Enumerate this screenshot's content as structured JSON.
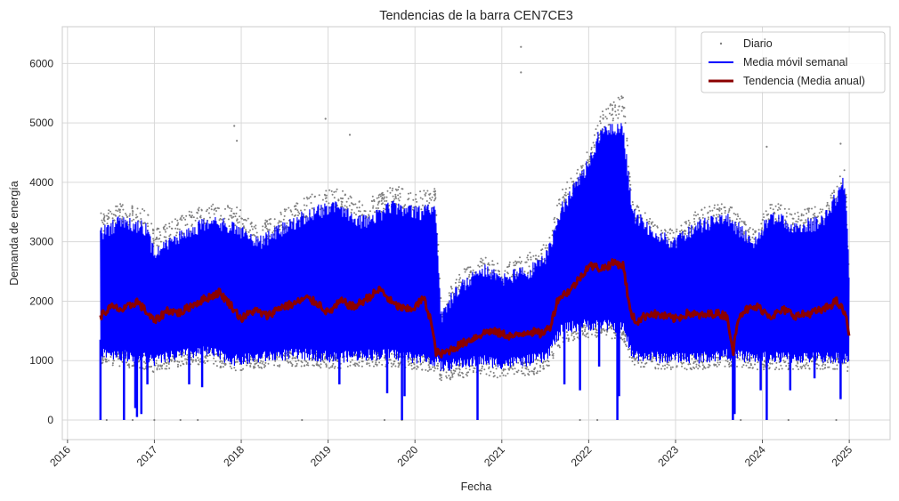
{
  "chart_data": {
    "type": "line",
    "title": "Tendencias de la barra CEN7CE3",
    "xlabel": "Fecha",
    "ylabel": "Demanda de energía",
    "xlim": [
      2015.94,
      2025.47
    ],
    "ylim": [
      -330,
      6620
    ],
    "x_ticks": [
      2016,
      2017,
      2018,
      2019,
      2020,
      2021,
      2022,
      2023,
      2024,
      2025
    ],
    "x_tick_labels": [
      "2016",
      "2017",
      "2018",
      "2019",
      "2020",
      "2021",
      "2022",
      "2023",
      "2024",
      "2025"
    ],
    "y_ticks": [
      0,
      1000,
      2000,
      3000,
      4000,
      5000,
      6000
    ],
    "y_tick_labels": [
      "0",
      "1000",
      "2000",
      "3000",
      "4000",
      "5000",
      "6000"
    ],
    "grid": true,
    "legend_position": "top-right",
    "series": [
      {
        "name": "Diario",
        "style": "scatter",
        "color": "#808080",
        "envelope_x": [
          2016.38,
          2016.6,
          2016.9,
          2017.0,
          2017.3,
          2017.6,
          2017.95,
          2018.2,
          2018.5,
          2018.8,
          2019.1,
          2019.4,
          2019.75,
          2020.0,
          2020.24,
          2020.3,
          2020.5,
          2020.8,
          2021.0,
          2021.3,
          2021.5,
          2021.7,
          2021.95,
          2022.15,
          2022.4,
          2022.5,
          2022.8,
          2023.0,
          2023.3,
          2023.6,
          2023.9,
          2024.1,
          2024.4,
          2024.7,
          2024.95,
          2025.0
        ],
        "envelope_high": [
          3500,
          3650,
          3600,
          3200,
          3450,
          3650,
          3600,
          3300,
          3550,
          3800,
          3900,
          3700,
          3950,
          3850,
          3900,
          2000,
          2500,
          2750,
          2600,
          2800,
          3000,
          3900,
          4400,
          5200,
          5500,
          3700,
          3300,
          3200,
          3600,
          3650,
          3200,
          3700,
          3500,
          3650,
          4300,
          2700
        ],
        "envelope_low": [
          950,
          900,
          850,
          800,
          900,
          950,
          800,
          850,
          900,
          900,
          850,
          900,
          900,
          850,
          800,
          650,
          700,
          750,
          700,
          750,
          800,
          1300,
          1350,
          1400,
          1300,
          900,
          850,
          850,
          850,
          900,
          850,
          850,
          850,
          850,
          850,
          800
        ],
        "outliers": [
          {
            "x": 2016.45,
            "y": 0
          },
          {
            "x": 2016.75,
            "y": 0
          },
          {
            "x": 2017.0,
            "y": 0
          },
          {
            "x": 2017.3,
            "y": 0
          },
          {
            "x": 2017.5,
            "y": 0
          },
          {
            "x": 2017.92,
            "y": 4950
          },
          {
            "x": 2017.95,
            "y": 4700
          },
          {
            "x": 2018.7,
            "y": 0
          },
          {
            "x": 2018.97,
            "y": 5070
          },
          {
            "x": 2019.25,
            "y": 4800
          },
          {
            "x": 2019.65,
            "y": 0
          },
          {
            "x": 2019.85,
            "y": 0
          },
          {
            "x": 2021.22,
            "y": 6280
          },
          {
            "x": 2021.22,
            "y": 5850
          },
          {
            "x": 2021.9,
            "y": 0
          },
          {
            "x": 2022.1,
            "y": 0
          },
          {
            "x": 2023.75,
            "y": 0
          },
          {
            "x": 2024.05,
            "y": 4600
          },
          {
            "x": 2024.3,
            "y": 0
          },
          {
            "x": 2024.85,
            "y": 0
          },
          {
            "x": 2024.9,
            "y": 4650
          }
        ]
      },
      {
        "name": "Media móvil semanal",
        "style": "line",
        "color": "#0000ff",
        "band_x": [
          2016.38,
          2016.6,
          2016.9,
          2017.0,
          2017.3,
          2017.6,
          2017.95,
          2018.2,
          2018.5,
          2018.8,
          2019.1,
          2019.4,
          2019.75,
          2020.0,
          2020.24,
          2020.3,
          2020.5,
          2020.8,
          2021.0,
          2021.3,
          2021.5,
          2021.7,
          2021.95,
          2022.15,
          2022.4,
          2022.5,
          2022.8,
          2023.0,
          2023.3,
          2023.6,
          2023.9,
          2024.1,
          2024.4,
          2024.7,
          2024.95,
          2025.0
        ],
        "band_high": [
          3250,
          3450,
          3350,
          2900,
          3200,
          3450,
          3350,
          3100,
          3350,
          3600,
          3700,
          3450,
          3700,
          3600,
          3650,
          1850,
          2350,
          2650,
          2500,
          2600,
          2800,
          3700,
          4300,
          5000,
          5000,
          3600,
          3200,
          3100,
          3400,
          3500,
          3100,
          3550,
          3350,
          3450,
          4150,
          2550
        ],
        "band_low": [
          1050,
          1000,
          950,
          900,
          1000,
          1050,
          900,
          950,
          1000,
          1000,
          950,
          1000,
          1000,
          950,
          900,
          800,
          850,
          900,
          850,
          900,
          950,
          1450,
          1500,
          1500,
          1450,
          1000,
          950,
          950,
          950,
          1000,
          950,
          950,
          950,
          950,
          950,
          900
        ],
        "dips": [
          {
            "x": 2016.38,
            "y": 0
          },
          {
            "x": 2016.65,
            "y": 0
          },
          {
            "x": 2016.78,
            "y": 200
          },
          {
            "x": 2016.8,
            "y": 50
          },
          {
            "x": 2016.85,
            "y": 100
          },
          {
            "x": 2016.92,
            "y": 600
          },
          {
            "x": 2017.4,
            "y": 600
          },
          {
            "x": 2017.55,
            "y": 550
          },
          {
            "x": 2019.13,
            "y": 600
          },
          {
            "x": 2019.68,
            "y": 450
          },
          {
            "x": 2019.85,
            "y": 0
          },
          {
            "x": 2019.88,
            "y": 400
          },
          {
            "x": 2020.72,
            "y": 0
          },
          {
            "x": 2021.72,
            "y": 600
          },
          {
            "x": 2021.9,
            "y": 500
          },
          {
            "x": 2022.12,
            "y": 900
          },
          {
            "x": 2022.33,
            "y": 0
          },
          {
            "x": 2022.35,
            "y": 400
          },
          {
            "x": 2023.66,
            "y": 0
          },
          {
            "x": 2023.68,
            "y": 100
          },
          {
            "x": 2023.98,
            "y": 500
          },
          {
            "x": 2024.05,
            "y": 0
          },
          {
            "x": 2024.32,
            "y": 500
          },
          {
            "x": 2024.6,
            "y": 700
          },
          {
            "x": 2024.9,
            "y": 350
          }
        ]
      },
      {
        "name": "Tendencia (Media anual)",
        "style": "line",
        "color": "#8b0000",
        "x": [
          2016.38,
          2016.5,
          2016.65,
          2016.8,
          2016.92,
          2017.0,
          2017.15,
          2017.3,
          2017.45,
          2017.6,
          2017.75,
          2017.9,
          2018.0,
          2018.15,
          2018.3,
          2018.45,
          2018.6,
          2018.75,
          2018.9,
          2019.0,
          2019.15,
          2019.3,
          2019.45,
          2019.6,
          2019.75,
          2019.9,
          2020.0,
          2020.1,
          2020.18,
          2020.24,
          2020.3,
          2020.5,
          2020.7,
          2020.85,
          2021.0,
          2021.15,
          2021.3,
          2021.45,
          2021.55,
          2021.65,
          2021.8,
          2021.9,
          2022.0,
          2022.15,
          2022.3,
          2022.4,
          2022.48,
          2022.55,
          2022.7,
          2022.85,
          2023.0,
          2023.15,
          2023.3,
          2023.45,
          2023.6,
          2023.66,
          2023.72,
          2023.8,
          2023.95,
          2024.1,
          2024.25,
          2024.4,
          2024.55,
          2024.7,
          2024.85,
          2024.95,
          2025.0
        ],
        "y": [
          1750,
          1900,
          1850,
          2000,
          1800,
          1650,
          1850,
          1800,
          1950,
          2050,
          2150,
          1900,
          1700,
          1850,
          1750,
          1900,
          1950,
          2050,
          1950,
          1800,
          2000,
          1900,
          2050,
          2200,
          1950,
          1850,
          1900,
          2050,
          1700,
          1150,
          1100,
          1250,
          1400,
          1500,
          1450,
          1400,
          1500,
          1450,
          1550,
          2050,
          2200,
          2400,
          2600,
          2550,
          2650,
          2600,
          1800,
          1650,
          1800,
          1750,
          1700,
          1800,
          1750,
          1800,
          1750,
          1100,
          1750,
          1850,
          1900,
          1750,
          1850,
          1750,
          1800,
          1850,
          2000,
          1800,
          1450
        ]
      }
    ]
  }
}
